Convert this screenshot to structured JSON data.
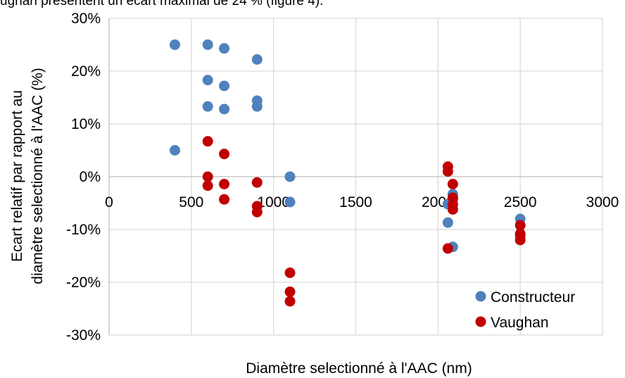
{
  "page": {
    "top_fragment_text": "ughan présentent un écart maximal de 24 % (figure 4)."
  },
  "chart_data": {
    "type": "scatter",
    "title": "",
    "xlabel": "Diamètre selectionné à l'AAC (nm)",
    "ylabel_lines": [
      "Ecart relatif par rapport au",
      "diamètre selectionné à l'AAC (%)"
    ],
    "xlim": [
      0,
      3000
    ],
    "ylim": [
      -30,
      30
    ],
    "x_ticks": [
      0,
      500,
      1000,
      1500,
      2000,
      2500,
      3000
    ],
    "y_ticks": [
      30,
      20,
      10,
      0,
      -10,
      -20,
      -30
    ],
    "x_tick_labels": [
      "0",
      "500",
      "1000",
      "1500",
      "2000",
      "2500",
      "3000"
    ],
    "y_tick_labels": [
      "30%",
      "20%",
      "10%",
      "0%",
      "-10%",
      "-20%",
      "-30%"
    ],
    "grid": true,
    "legend_position": "bottom-right",
    "series": [
      {
        "name": "Constructeur",
        "color": "#4f81bd",
        "points": [
          [
            400,
            25
          ],
          [
            400,
            5
          ],
          [
            600,
            25
          ],
          [
            600,
            18.3
          ],
          [
            600,
            13.3
          ],
          [
            700,
            24.3
          ],
          [
            700,
            17.2
          ],
          [
            700,
            12.8
          ],
          [
            900,
            22.2
          ],
          [
            900,
            14.4
          ],
          [
            900,
            13.3
          ],
          [
            1100,
            0
          ],
          [
            1100,
            -4.8
          ],
          [
            2060,
            -5.2
          ],
          [
            2060,
            -8.7
          ],
          [
            2090,
            -3.3
          ],
          [
            2090,
            -4.3
          ],
          [
            2090,
            -13.3
          ],
          [
            2500,
            -8
          ]
        ]
      },
      {
        "name": "Vaughan",
        "color": "#c00000",
        "points": [
          [
            600,
            6.7
          ],
          [
            600,
            0
          ],
          [
            600,
            -1.7
          ],
          [
            700,
            4.3
          ],
          [
            700,
            -1.4
          ],
          [
            700,
            -4.3
          ],
          [
            900,
            -1.1
          ],
          [
            900,
            -5.6
          ],
          [
            900,
            -6.7
          ],
          [
            1100,
            -18.2
          ],
          [
            1100,
            -21.8
          ],
          [
            1100,
            -23.6
          ],
          [
            2060,
            1.9
          ],
          [
            2060,
            1.0
          ],
          [
            2060,
            -13.6
          ],
          [
            2090,
            -1.4
          ],
          [
            2090,
            -4.0
          ],
          [
            2090,
            -5.3
          ],
          [
            2090,
            -6.2
          ],
          [
            2500,
            -9.2
          ],
          [
            2500,
            -10.8
          ],
          [
            2500,
            -11.2
          ],
          [
            2500,
            -12
          ]
        ]
      }
    ]
  }
}
